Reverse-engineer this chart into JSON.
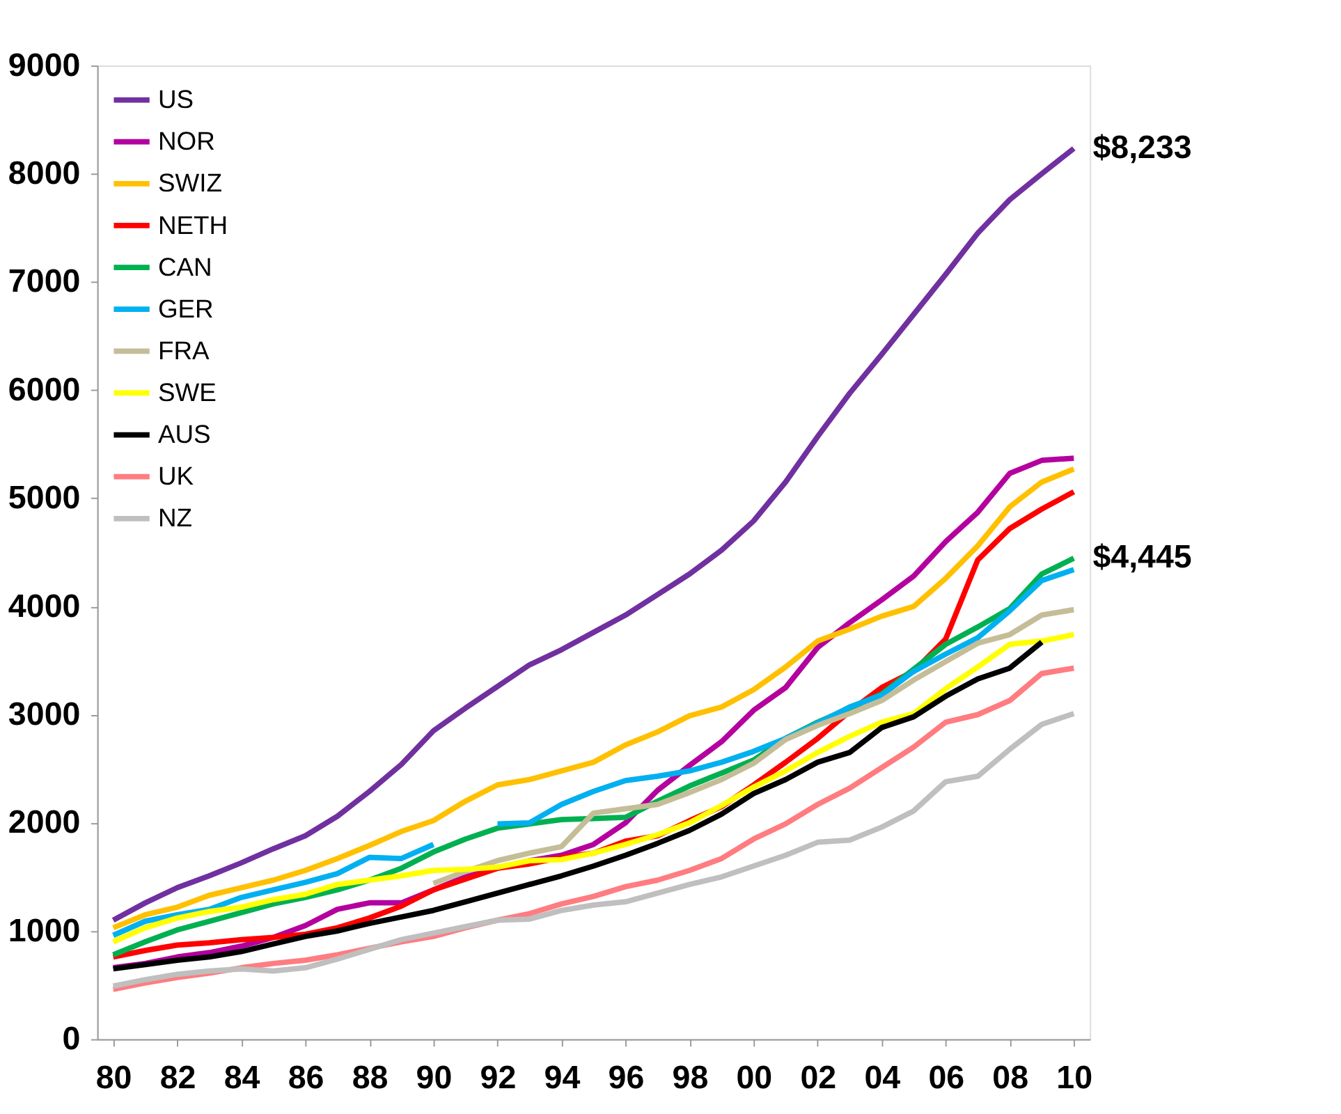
{
  "chart_data": {
    "type": "line",
    "x": [
      1980,
      1981,
      1982,
      1983,
      1984,
      1985,
      1986,
      1987,
      1988,
      1989,
      1990,
      1991,
      1992,
      1993,
      1994,
      1995,
      1996,
      1997,
      1998,
      1999,
      2000,
      2001,
      2002,
      2003,
      2004,
      2005,
      2006,
      2007,
      2008,
      2009,
      2010
    ],
    "xlim": [
      1979.5,
      2010.5
    ],
    "xticks": [
      {
        "value": 1980,
        "label": "80"
      },
      {
        "value": 1982,
        "label": "82"
      },
      {
        "value": 1984,
        "label": "84"
      },
      {
        "value": 1986,
        "label": "86"
      },
      {
        "value": 1988,
        "label": "88"
      },
      {
        "value": 1990,
        "label": "90"
      },
      {
        "value": 1992,
        "label": "92"
      },
      {
        "value": 1994,
        "label": "94"
      },
      {
        "value": 1996,
        "label": "96"
      },
      {
        "value": 1998,
        "label": "98"
      },
      {
        "value": 2000,
        "label": "00"
      },
      {
        "value": 2002,
        "label": "02"
      },
      {
        "value": 2004,
        "label": "04"
      },
      {
        "value": 2006,
        "label": "06"
      },
      {
        "value": 2008,
        "label": "08"
      },
      {
        "value": 2010,
        "label": "10"
      }
    ],
    "ylim": [
      0,
      9000
    ],
    "yticks": [
      0,
      1000,
      2000,
      3000,
      4000,
      5000,
      6000,
      7000,
      8000,
      9000
    ],
    "grid": false,
    "legend": "top left",
    "line_style": "solid",
    "marker": "none",
    "annotations": [
      {
        "text": "$8,233",
        "x": 2010,
        "y": 8233
      },
      {
        "text": "$4,445",
        "x": 2010,
        "y": 4445
      }
    ],
    "series": [
      {
        "name": "US",
        "color": "#7030a0",
        "values": [
          1100,
          1260,
          1400,
          1510,
          1630,
          1760,
          1880,
          2060,
          2290,
          2540,
          2850,
          3060,
          3260,
          3460,
          3600,
          3760,
          3920,
          4110,
          4300,
          4520,
          4790,
          5150,
          5570,
          5970,
          6330,
          6700,
          7070,
          7450,
          7760,
          8000,
          8233
        ]
      },
      {
        "name": "NOR",
        "color": "#b4009e",
        "values": [
          660,
          700,
          760,
          800,
          860,
          940,
          1050,
          1200,
          1260,
          1260,
          1380,
          1500,
          1580,
          1650,
          1700,
          1800,
          2000,
          2300,
          2530,
          2750,
          3040,
          3250,
          3620,
          3850,
          4060,
          4280,
          4600,
          4870,
          5230,
          5350,
          5370
        ]
      },
      {
        "name": "SWIZ",
        "color": "#ffc000",
        "values": [
          1030,
          1150,
          1220,
          1330,
          1400,
          1470,
          1560,
          1670,
          1790,
          1920,
          2020,
          2200,
          2350,
          2400,
          2480,
          2560,
          2720,
          2840,
          2990,
          3070,
          3230,
          3440,
          3680,
          3790,
          3910,
          4000,
          4260,
          4560,
          4920,
          5150,
          5270
        ]
      },
      {
        "name": "NETH",
        "color": "#ff0000",
        "values": [
          760,
          820,
          870,
          890,
          920,
          940,
          970,
          1030,
          1120,
          1230,
          1380,
          1480,
          1580,
          1620,
          1680,
          1720,
          1830,
          1880,
          2020,
          2150,
          2350,
          2560,
          2780,
          3030,
          3250,
          3400,
          3700,
          4430,
          4720,
          4900,
          5060
        ]
      },
      {
        "name": "CAN",
        "color": "#00b050",
        "values": [
          780,
          900,
          1010,
          1090,
          1170,
          1250,
          1310,
          1380,
          1470,
          1580,
          1730,
          1850,
          1950,
          1990,
          2030,
          2040,
          2050,
          2200,
          2340,
          2460,
          2580,
          2780,
          2930,
          3060,
          3190,
          3420,
          3650,
          3810,
          3980,
          4300,
          4445
        ]
      },
      {
        "name": "GER",
        "color": "#00b0f0",
        "values": [
          960,
          1090,
          1150,
          1200,
          1310,
          1380,
          1450,
          1530,
          1680,
          1670,
          1800,
          null,
          1990,
          2000,
          2170,
          2290,
          2390,
          2430,
          2480,
          2560,
          2660,
          2780,
          2920,
          3070,
          3180,
          3400,
          3560,
          3710,
          3960,
          4240,
          4340
        ]
      },
      {
        "name": "FRA",
        "color": "#c4bd97",
        "values": [
          null,
          null,
          null,
          null,
          null,
          null,
          null,
          null,
          null,
          null,
          1440,
          1550,
          1650,
          1720,
          1780,
          2090,
          2130,
          2170,
          2280,
          2400,
          2550,
          2770,
          2900,
          3010,
          3130,
          3320,
          3490,
          3660,
          3740,
          3920,
          3970
        ]
      },
      {
        "name": "SWE",
        "color": "#ffff00",
        "values": [
          900,
          1030,
          1120,
          1180,
          1220,
          1290,
          1340,
          1430,
          1470,
          1510,
          1560,
          1570,
          1590,
          1650,
          1660,
          1720,
          1800,
          1890,
          2000,
          2160,
          2330,
          2480,
          2650,
          2800,
          2930,
          3010,
          3240,
          3440,
          3650,
          3680,
          3740
        ]
      },
      {
        "name": "AUS",
        "color": "#000000",
        "values": [
          650,
          690,
          730,
          760,
          810,
          880,
          950,
          1000,
          1070,
          1130,
          1190,
          1270,
          1350,
          1430,
          1510,
          1600,
          1700,
          1810,
          1930,
          2080,
          2270,
          2400,
          2560,
          2650,
          2880,
          2980,
          3170,
          3330,
          3430,
          3670,
          null
        ]
      },
      {
        "name": "UK",
        "color": "#ff7c80",
        "values": [
          460,
          520,
          570,
          610,
          660,
          700,
          730,
          780,
          840,
          900,
          950,
          1030,
          1100,
          1160,
          1250,
          1320,
          1410,
          1470,
          1560,
          1670,
          1850,
          1990,
          2170,
          2320,
          2510,
          2700,
          2930,
          3000,
          3130,
          3380,
          3430
        ]
      },
      {
        "name": "NZ",
        "color": "#bfbfbf",
        "values": [
          490,
          550,
          600,
          630,
          650,
          630,
          660,
          740,
          830,
          920,
          980,
          1040,
          1100,
          1110,
          1190,
          1240,
          1270,
          1350,
          1430,
          1500,
          1600,
          1700,
          1820,
          1840,
          1960,
          2110,
          2380,
          2430,
          2680,
          2910,
          3010
        ]
      }
    ]
  }
}
